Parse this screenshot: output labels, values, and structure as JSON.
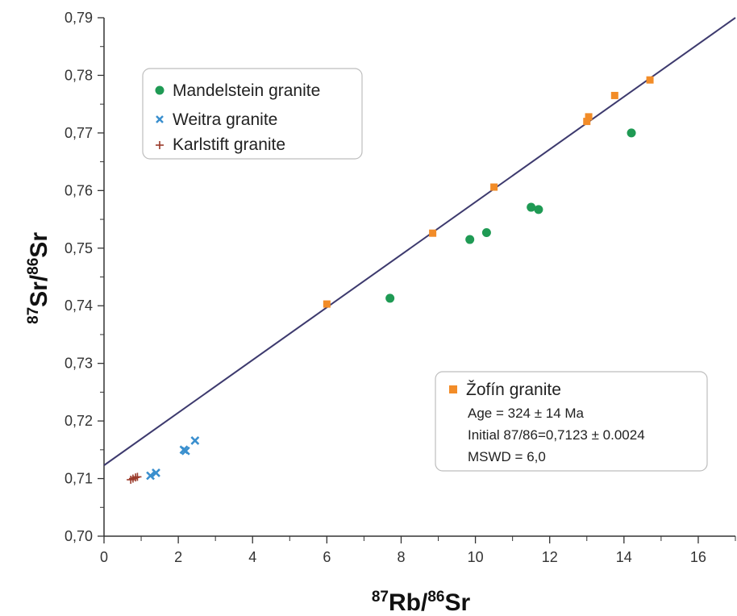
{
  "chart_data": {
    "type": "scatter",
    "xlabel_main": "Rb/",
    "xlabel_sup1": "87",
    "xlabel_sup2": "86",
    "xlabel_tail": "Sr",
    "ylabel_main": "Sr/",
    "ylabel_sup1": "87",
    "ylabel_sup2": "86",
    "ylabel_tail": "Sr",
    "xlim": [
      0,
      17
    ],
    "ylim": [
      0.7,
      0.79
    ],
    "x_ticks": [
      0,
      2,
      4,
      6,
      8,
      10,
      12,
      14,
      16
    ],
    "x_tick_labels": [
      "0",
      "2",
      "4",
      "6",
      "8",
      "10",
      "12",
      "14",
      "16"
    ],
    "y_ticks": [
      0.7,
      0.71,
      0.72,
      0.73,
      0.74,
      0.75,
      0.76,
      0.77,
      0.78,
      0.79
    ],
    "y_tick_labels": [
      "0,70",
      "0,71",
      "0,72",
      "0,73",
      "0,74",
      "0,75",
      "0,76",
      "0,77",
      "0,78",
      "0,79"
    ],
    "grid": false,
    "series": [
      {
        "name": "Mandelstein granite",
        "marker": "circle",
        "color": "#1f9a54",
        "points": [
          [
            7.7,
            0.7413
          ],
          [
            9.85,
            0.7515
          ],
          [
            10.3,
            0.7527
          ],
          [
            11.5,
            0.7571
          ],
          [
            11.7,
            0.7567
          ],
          [
            14.2,
            0.77
          ]
        ]
      },
      {
        "name": "Weitra granite",
        "marker": "x",
        "color": "#3a8fce",
        "points": [
          [
            1.25,
            0.7105
          ],
          [
            1.4,
            0.711
          ],
          [
            2.15,
            0.715
          ],
          [
            2.2,
            0.7148
          ],
          [
            2.45,
            0.7166
          ]
        ]
      },
      {
        "name": "Karlstift granite",
        "marker": "plus",
        "color": "#9a3a2a",
        "points": [
          [
            0.72,
            0.7098
          ],
          [
            0.78,
            0.71
          ],
          [
            0.85,
            0.7102
          ],
          [
            0.9,
            0.7103
          ]
        ]
      },
      {
        "name": "Žofín granite",
        "marker": "square",
        "color": "#f28c28",
        "points": [
          [
            6.0,
            0.7403
          ],
          [
            8.85,
            0.7526
          ],
          [
            10.5,
            0.7606
          ],
          [
            13.0,
            0.772
          ],
          [
            13.05,
            0.7728
          ],
          [
            13.75,
            0.7765
          ],
          [
            14.7,
            0.7792
          ]
        ]
      }
    ],
    "regression_line": {
      "color": "#3d3a6e",
      "x": [
        0,
        17
      ],
      "y": [
        0.7123,
        0.79
      ]
    },
    "legend": {
      "position": "top-left",
      "entries": [
        "Mandelstein granite",
        "Weitra granite",
        "Karlstift granite"
      ]
    },
    "annotation": {
      "position": "bottom-right",
      "title": "Žofín granite",
      "lines": [
        "Age = 324 ± 14 Ma",
        "Initial 87/86=0,7123 ± 0.0024",
        "MSWD = 6,0"
      ]
    }
  }
}
